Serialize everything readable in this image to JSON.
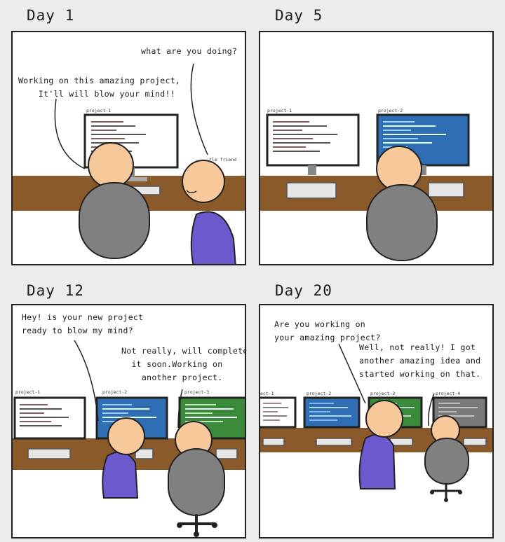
{
  "panels": [
    {
      "day": "Day 1",
      "speech": [
        "what are you doing?",
        "Working on this amazing project,\n    It'll will blow your mind!!"
      ],
      "labels": [
        "project-1",
        "*le friend"
      ]
    },
    {
      "day": "Day 5",
      "speech": [],
      "labels": [
        "project-1",
        "project-2"
      ]
    },
    {
      "day": "Day 12",
      "speech": [
        "Hey! is your new project\nready to blow my mind?",
        "Not really, will complete\n  it soon.Working on\n    another project."
      ],
      "labels": [
        "project-1",
        "project-2",
        "project-3"
      ]
    },
    {
      "day": "Day 20",
      "speech": [
        "Are you working on\nyour amazing project?",
        "Well, not really! I got\nanother amazing idea and\nstarted working on that."
      ],
      "labels": [
        "ect-1",
        "project-2",
        "project-3",
        "project-4"
      ]
    }
  ],
  "colors": {
    "desk": "#8a5a2b",
    "skin": "#f7c89a",
    "chair": "#808080",
    "shirt": "#6a5acd",
    "screen_white": "#ffffff",
    "screen_blue": "#2f6db5",
    "screen_green": "#3a8a3a",
    "screen_gray": "#7a7a7a"
  }
}
